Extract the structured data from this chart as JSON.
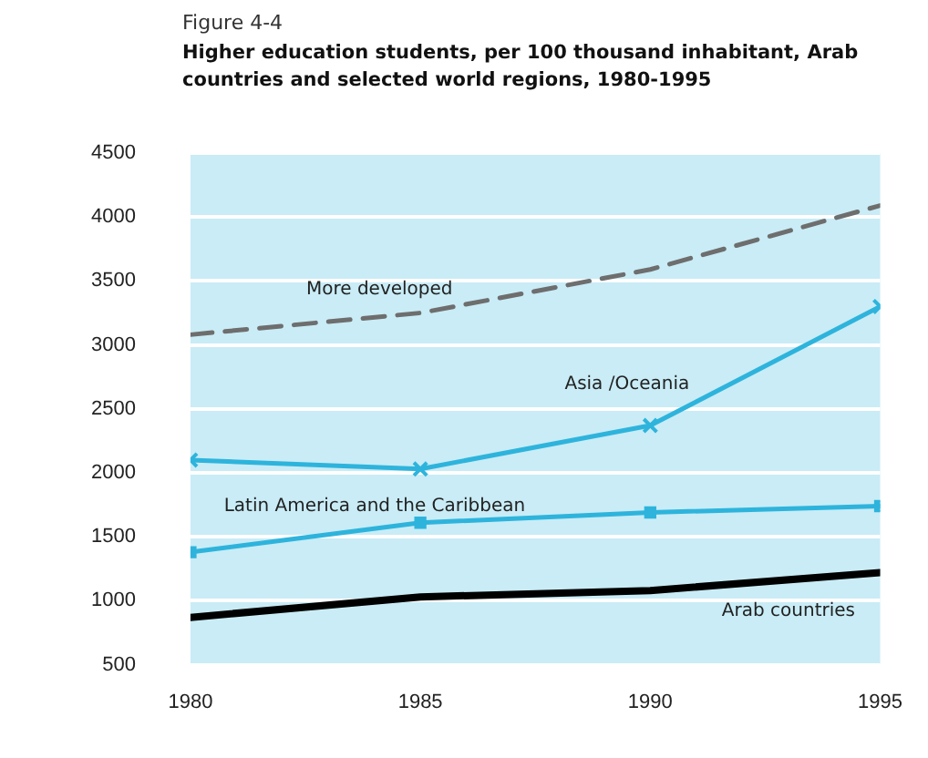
{
  "chart_data": {
    "type": "line",
    "title": "Higher education students, per 100 thousand inhabitant, Arab countries and selected world regions, 1980-1995",
    "x": [
      1980,
      1985,
      1990,
      1995
    ],
    "series": [
      {
        "name": "More developed",
        "color": "#6e6e6e",
        "line_style": "dashed",
        "marker": "none",
        "values": [
          3080,
          3250,
          3590,
          4090
        ]
      },
      {
        "name": "Asia /Oceania",
        "color": "#2eb4dc",
        "line_style": "solid",
        "marker": "cross",
        "values": [
          2100,
          2030,
          2370,
          3300
        ]
      },
      {
        "name": "Latin America and the Caribbean",
        "color": "#2eb4dc",
        "line_style": "solid",
        "marker": "square",
        "values": [
          1380,
          1610,
          1690,
          1740
        ]
      },
      {
        "name": "Arab countries",
        "color": "#000000",
        "line_style": "solid",
        "marker": "none",
        "values": [
          870,
          1030,
          1080,
          1220
        ]
      }
    ],
    "xlim": [
      1980,
      1995
    ],
    "xticks": [
      1980,
      1985,
      1990,
      1995
    ],
    "ylim": [
      500,
      4500
    ],
    "yticks": [
      500,
      1000,
      1500,
      2000,
      2500,
      3000,
      3500,
      4000,
      4500
    ],
    "grid": "y",
    "legend": false,
    "annotations": [
      "Figure 4-4"
    ]
  }
}
